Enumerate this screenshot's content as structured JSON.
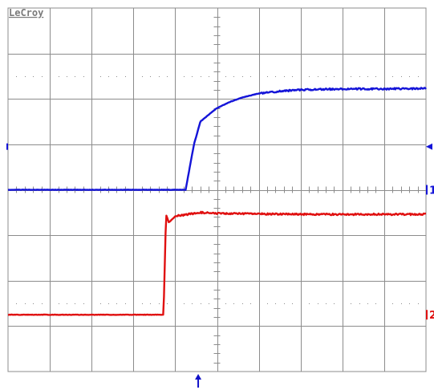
{
  "brand": "LeCroy",
  "chart_data": {
    "type": "line",
    "title": "",
    "xlabel": "",
    "ylabel": "",
    "grid": true,
    "x_divisions": 10,
    "y_divisions": 8,
    "xlim": [
      0,
      10
    ],
    "ylim": [
      -4,
      4
    ],
    "trigger_position_div": 4.55,
    "colors": {
      "grid": "#8c8c8c",
      "ch1": "#1414d8",
      "ch2": "#e01010",
      "marker": "#1010c8"
    },
    "series": [
      {
        "channel_label": "1",
        "color": "#1414d8",
        "baseline_div": 0.0,
        "x": [
          0,
          4.0,
          4.25,
          4.45,
          4.6,
          4.8,
          5.0,
          5.3,
          5.6,
          6.0,
          6.5,
          7.0,
          8.0,
          9.0,
          10.0
        ],
        "y": [
          0.0,
          0.0,
          0.0,
          1.0,
          1.5,
          1.65,
          1.8,
          1.93,
          2.03,
          2.12,
          2.17,
          2.2,
          2.22,
          2.22,
          2.23
        ]
      },
      {
        "channel_label": "2",
        "color": "#e01010",
        "baseline_div": -2.75,
        "x": [
          0,
          3.6,
          3.72,
          3.78,
          3.85,
          4.0,
          4.3,
          4.6,
          5.0,
          6.0,
          7.0,
          8.0,
          9.0,
          10.0
        ],
        "y": [
          -2.75,
          -2.75,
          -2.75,
          -0.55,
          -0.72,
          -0.58,
          -0.54,
          -0.5,
          -0.52,
          -0.53,
          -0.54,
          -0.54,
          -0.54,
          -0.54
        ]
      }
    ]
  }
}
